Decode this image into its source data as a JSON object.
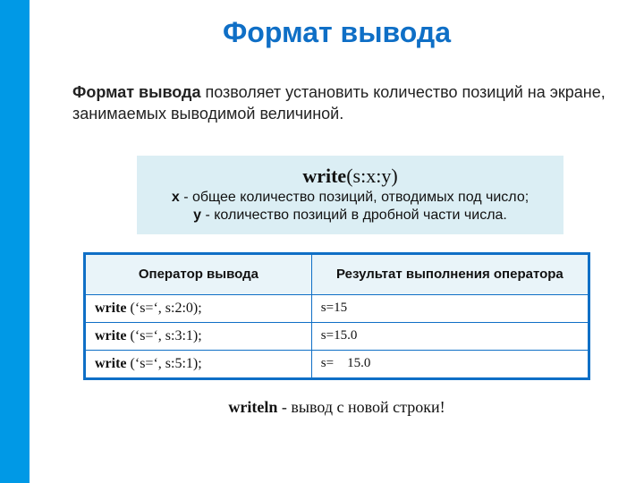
{
  "title": "Формат вывода",
  "intro_bold": "Формат вывода",
  "intro_rest": " позволяет установить количество позиций на экране, занимаемых выводимой величиной.",
  "syntax": {
    "call": "write",
    "args": "(s:x:y)",
    "line_x_before": "x",
    "line_x_after": " - общее количество позиций, отводимых под число;",
    "line_y_before": "y",
    "line_y_after": " -  количество позиций в дробной части числа."
  },
  "table": {
    "header_op": "Оператор вывода",
    "header_res": "Результат выполнения оператора",
    "rows": [
      {
        "kw": "write",
        "args": " (‘s=‘, s:2:0);",
        "result": "s=15"
      },
      {
        "kw": "write",
        "args": " (‘s=‘, s:3:1);",
        "result": "s=15.0"
      },
      {
        "kw": "write",
        "args": " (‘s=‘, s:5:1);",
        "result": "s=    15.0"
      }
    ]
  },
  "footer_kw": "writeln",
  "footer_rest": "  -  вывод с  новой строки!",
  "colors": {
    "stripe": "#0099e6",
    "title": "#0f6fc6",
    "syntax_bg": "#dbeef4",
    "table_border": "#0f6fc6",
    "th_bg": "#e9f4f9"
  }
}
